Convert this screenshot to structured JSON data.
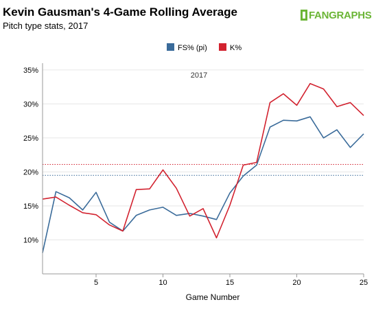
{
  "header": {
    "title": "Kevin Gausman's 4-Game Rolling Average",
    "subtitle": "Pitch type stats, 2017",
    "logo_text": "FANGRAPHS"
  },
  "colors": {
    "fs": "#3a6b9a",
    "k": "#d2222f",
    "grid": "#e6e6e6",
    "axis": "#999999",
    "logo": "#6bb536"
  },
  "chart_data": {
    "type": "line",
    "title": "Kevin Gausman's 4-Game Rolling Average",
    "subtitle": "Pitch type stats, 2017",
    "annotation": "2017",
    "xlabel": "Game Number",
    "ylabel": "",
    "xlim": [
      1,
      25
    ],
    "ylim": [
      5,
      36
    ],
    "x_ticks": [
      5,
      10,
      15,
      20,
      25
    ],
    "y_ticks": [
      10,
      15,
      20,
      25,
      30,
      35
    ],
    "y_tick_labels": [
      "10%",
      "15%",
      "20%",
      "25%",
      "30%",
      "35%"
    ],
    "grid": "horizontal",
    "legend_position": "top-center",
    "x": [
      1,
      2,
      3,
      4,
      5,
      6,
      7,
      8,
      9,
      10,
      11,
      12,
      13,
      14,
      15,
      16,
      17,
      18,
      19,
      20,
      21,
      22,
      23,
      24,
      25
    ],
    "series": [
      {
        "name": "FS% (pi)",
        "color": "#3a6b9a",
        "values": [
          8.1,
          17.1,
          16.2,
          14.4,
          17.0,
          12.6,
          11.3,
          13.6,
          14.4,
          14.8,
          13.6,
          13.9,
          13.5,
          13.0,
          16.9,
          19.4,
          21.0,
          26.6,
          27.6,
          27.5,
          28.1,
          25.0,
          26.2,
          23.6,
          25.6
        ],
        "reference": 19.5
      },
      {
        "name": "K%",
        "color": "#d2222f",
        "values": [
          16.0,
          16.3,
          15.1,
          14.0,
          13.7,
          12.2,
          11.3,
          17.4,
          17.5,
          20.3,
          17.6,
          13.5,
          14.6,
          10.3,
          15.1,
          21.0,
          21.4,
          30.2,
          31.5,
          29.8,
          33.0,
          32.2,
          29.6,
          30.2,
          28.3
        ],
        "reference": 21.1
      }
    ]
  }
}
